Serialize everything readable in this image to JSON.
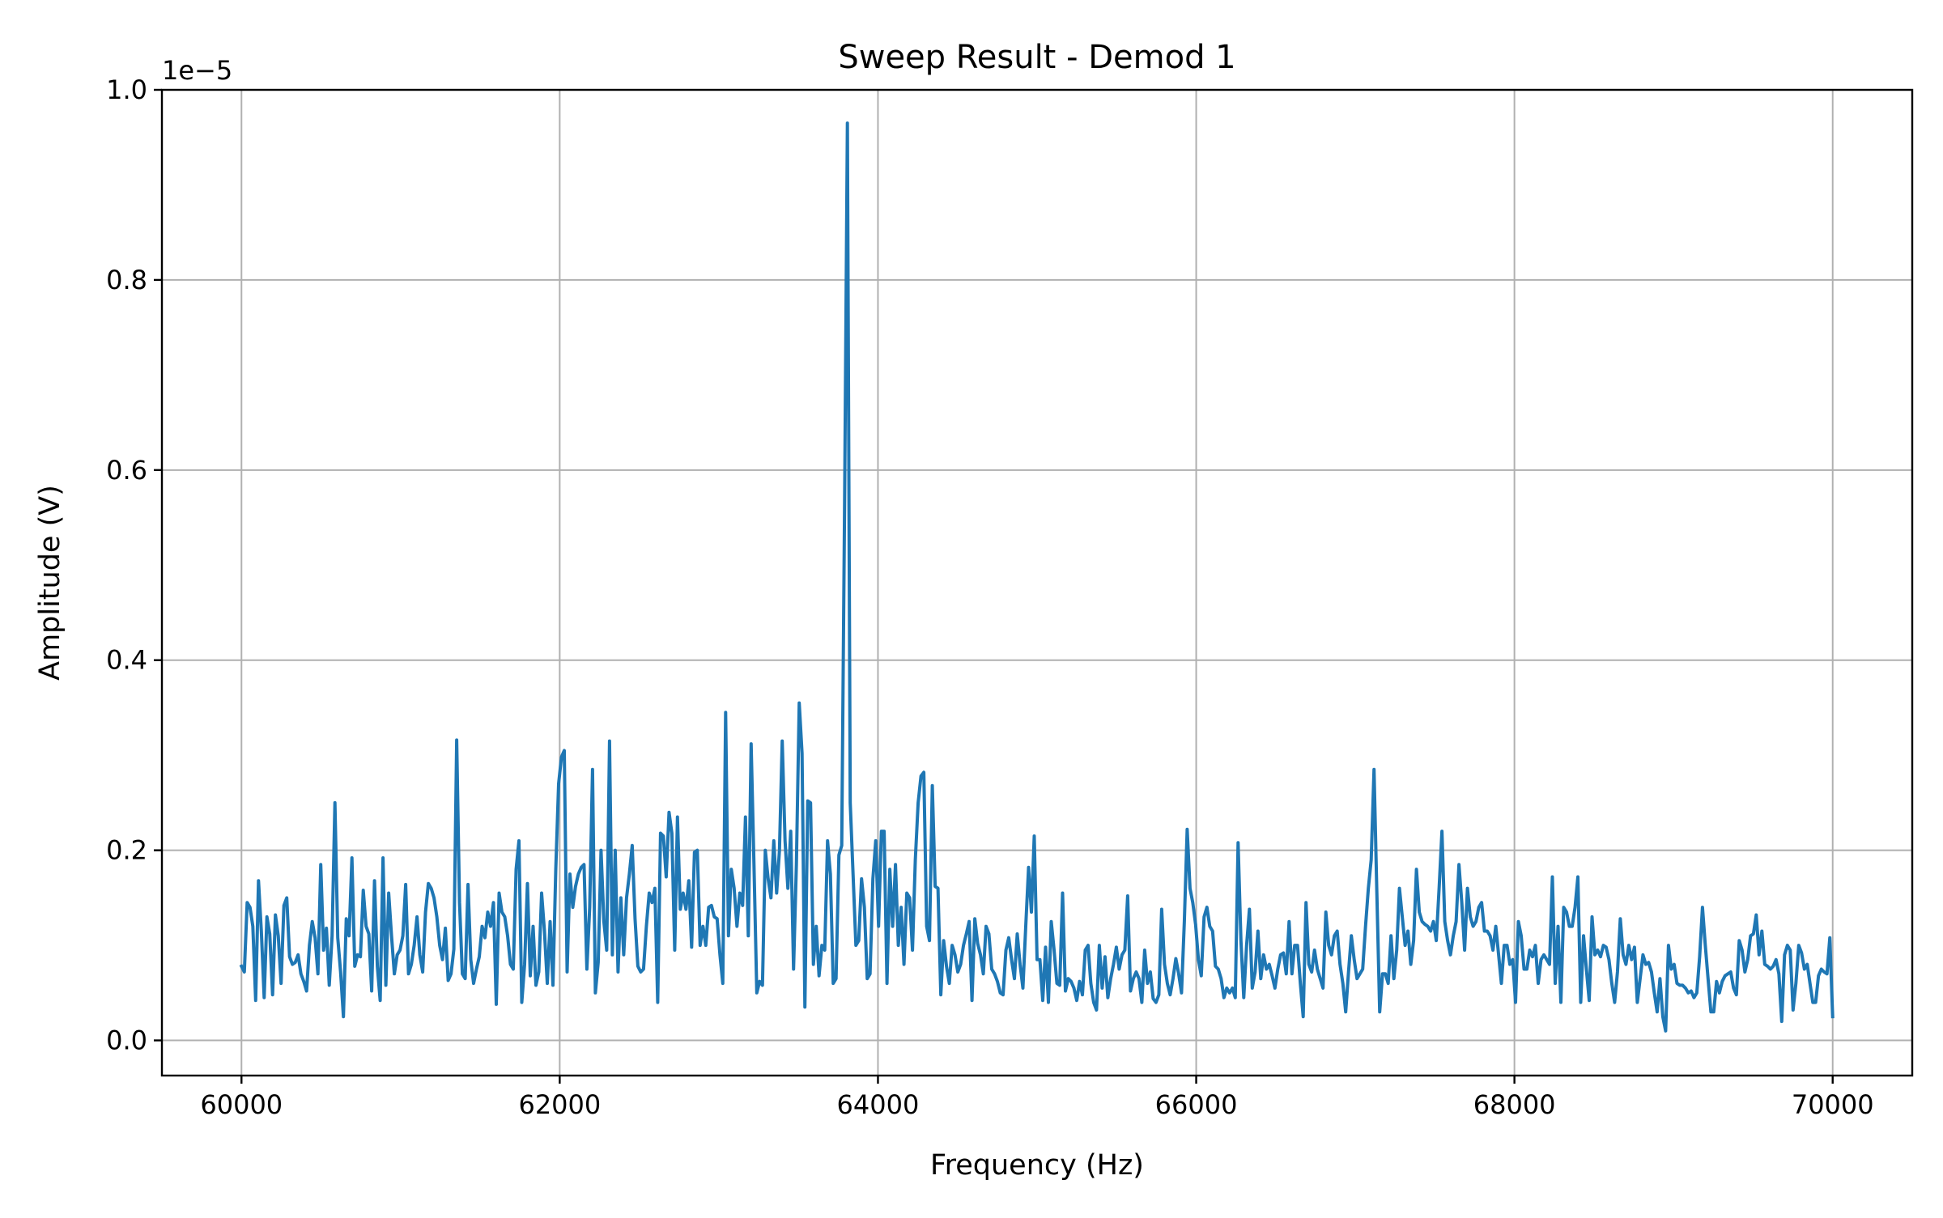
{
  "chart_data": {
    "type": "line",
    "title": "Sweep Result - Demod 1",
    "xlabel": "Frequency (Hz)",
    "ylabel": "Amplitude (V)",
    "y_scale_label": "1e−5",
    "xlim": [
      59500,
      70500
    ],
    "ylim": [
      -0.037,
      1.0
    ],
    "x_ticks": [
      60000,
      62000,
      64000,
      66000,
      68000,
      70000
    ],
    "x_tick_labels": [
      "60000",
      "62000",
      "64000",
      "66000",
      "68000",
      "70000"
    ],
    "y_ticks": [
      0.0,
      0.2,
      0.4,
      0.6,
      0.8,
      1.0
    ],
    "y_tick_labels": [
      "0.0",
      "0.2",
      "0.4",
      "0.6",
      "0.8",
      "1.0"
    ],
    "grid": true,
    "series": [
      {
        "color": "#1f77b4",
        "x_start": 60000,
        "x_end": 70000,
        "values": [
          0.078,
          0.072,
          0.145,
          0.14,
          0.12,
          0.042,
          0.168,
          0.115,
          0.045,
          0.13,
          0.112,
          0.048,
          0.132,
          0.11,
          0.06,
          0.142,
          0.15,
          0.088,
          0.08,
          0.082,
          0.09,
          0.07,
          0.062,
          0.052,
          0.1,
          0.125,
          0.108,
          0.07,
          0.185,
          0.095,
          0.118,
          0.058,
          0.11,
          0.25,
          0.108,
          0.072,
          0.025,
          0.128,
          0.11,
          0.192,
          0.078,
          0.09,
          0.088,
          0.158,
          0.12,
          0.112,
          0.052,
          0.168,
          0.078,
          0.042,
          0.192,
          0.058,
          0.155,
          0.11,
          0.07,
          0.09,
          0.095,
          0.11,
          0.164,
          0.07,
          0.08,
          0.1,
          0.13,
          0.09,
          0.072,
          0.135,
          0.165,
          0.16,
          0.15,
          0.13,
          0.1,
          0.085,
          0.118,
          0.063,
          0.07,
          0.096,
          0.316,
          0.145,
          0.07,
          0.065,
          0.164,
          0.085,
          0.06,
          0.075,
          0.088,
          0.12,
          0.108,
          0.135,
          0.12,
          0.145,
          0.038,
          0.155,
          0.135,
          0.13,
          0.11,
          0.08,
          0.075,
          0.18,
          0.21,
          0.04,
          0.08,
          0.165,
          0.068,
          0.12,
          0.058,
          0.072,
          0.155,
          0.115,
          0.06,
          0.125,
          0.058,
          0.18,
          0.27,
          0.298,
          0.305,
          0.072,
          0.175,
          0.14,
          0.162,
          0.175,
          0.182,
          0.185,
          0.075,
          0.14,
          0.285,
          0.05,
          0.082,
          0.2,
          0.125,
          0.095,
          0.315,
          0.09,
          0.2,
          0.072,
          0.15,
          0.09,
          0.15,
          0.175,
          0.205,
          0.128,
          0.078,
          0.072,
          0.075,
          0.12,
          0.155,
          0.145,
          0.16,
          0.04,
          0.218,
          0.215,
          0.172,
          0.24,
          0.218,
          0.095,
          0.235,
          0.138,
          0.155,
          0.138,
          0.168,
          0.098,
          0.198,
          0.2,
          0.1,
          0.12,
          0.1,
          0.14,
          0.142,
          0.13,
          0.128,
          0.09,
          0.06,
          0.345,
          0.11,
          0.18,
          0.16,
          0.12,
          0.155,
          0.142,
          0.235,
          0.11,
          0.312,
          0.185,
          0.05,
          0.062,
          0.058,
          0.2,
          0.17,
          0.15,
          0.21,
          0.155,
          0.2,
          0.315,
          0.21,
          0.16,
          0.22,
          0.075,
          0.185,
          0.355,
          0.302,
          0.035,
          0.252,
          0.25,
          0.08,
          0.12,
          0.068,
          0.1,
          0.095,
          0.21,
          0.175,
          0.06,
          0.065,
          0.195,
          0.205,
          0.56,
          0.965,
          0.25,
          0.175,
          0.1,
          0.105,
          0.17,
          0.14,
          0.065,
          0.07,
          0.17,
          0.21,
          0.12,
          0.22,
          0.22,
          0.06,
          0.18,
          0.12,
          0.185,
          0.1,
          0.14,
          0.08,
          0.155,
          0.15,
          0.095,
          0.19,
          0.25,
          0.278,
          0.282,
          0.12,
          0.105,
          0.268,
          0.162,
          0.16,
          0.048,
          0.105,
          0.078,
          0.06,
          0.1,
          0.09,
          0.072,
          0.08,
          0.1,
          0.112,
          0.125,
          0.042,
          0.128,
          0.102,
          0.09,
          0.07,
          0.12,
          0.112,
          0.075,
          0.07,
          0.062,
          0.05,
          0.048,
          0.095,
          0.108,
          0.085,
          0.065,
          0.112,
          0.08,
          0.055,
          0.12,
          0.182,
          0.135,
          0.215,
          0.085,
          0.085,
          0.042,
          0.098,
          0.04,
          0.125,
          0.095,
          0.06,
          0.058,
          0.155,
          0.052,
          0.065,
          0.062,
          0.055,
          0.042,
          0.062,
          0.048,
          0.095,
          0.1,
          0.06,
          0.04,
          0.032,
          0.1,
          0.055,
          0.088,
          0.045,
          0.065,
          0.08,
          0.098,
          0.075,
          0.09,
          0.095,
          0.152,
          0.052,
          0.065,
          0.072,
          0.065,
          0.04,
          0.095,
          0.06,
          0.072,
          0.044,
          0.04,
          0.048,
          0.138,
          0.08,
          0.06,
          0.048,
          0.065,
          0.086,
          0.07,
          0.05,
          0.125,
          0.222,
          0.16,
          0.145,
          0.122,
          0.085,
          0.068,
          0.13,
          0.14,
          0.12,
          0.115,
          0.078,
          0.075,
          0.065,
          0.045,
          0.055,
          0.05,
          0.055,
          0.045,
          0.208,
          0.105,
          0.045,
          0.1,
          0.138,
          0.055,
          0.072,
          0.115,
          0.065,
          0.09,
          0.075,
          0.08,
          0.068,
          0.055,
          0.075,
          0.09,
          0.092,
          0.07,
          0.125,
          0.07,
          0.1,
          0.1,
          0.06,
          0.025,
          0.145,
          0.08,
          0.072,
          0.095,
          0.075,
          0.065,
          0.055,
          0.135,
          0.1,
          0.09,
          0.11,
          0.115,
          0.08,
          0.06,
          0.03,
          0.072,
          0.11,
          0.085,
          0.065,
          0.07,
          0.075,
          0.12,
          0.16,
          0.19,
          0.285,
          0.155,
          0.03,
          0.07,
          0.07,
          0.06,
          0.11,
          0.065,
          0.095,
          0.16,
          0.13,
          0.1,
          0.115,
          0.08,
          0.105,
          0.18,
          0.135,
          0.125,
          0.122,
          0.12,
          0.115,
          0.125,
          0.105,
          0.16,
          0.22,
          0.125,
          0.105,
          0.09,
          0.11,
          0.125,
          0.185,
          0.145,
          0.095,
          0.16,
          0.13,
          0.12,
          0.125,
          0.14,
          0.145,
          0.115,
          0.115,
          0.11,
          0.095,
          0.12,
          0.09,
          0.06,
          0.1,
          0.1,
          0.08,
          0.085,
          0.04,
          0.125,
          0.11,
          0.075,
          0.075,
          0.095,
          0.088,
          0.1,
          0.06,
          0.085,
          0.09,
          0.085,
          0.08,
          0.172,
          0.06,
          0.12,
          0.04,
          0.14,
          0.135,
          0.12,
          0.12,
          0.14,
          0.172,
          0.04,
          0.11,
          0.075,
          0.042,
          0.13,
          0.09,
          0.095,
          0.088,
          0.1,
          0.098,
          0.085,
          0.06,
          0.04,
          0.072,
          0.128,
          0.09,
          0.08,
          0.1,
          0.085,
          0.098,
          0.04,
          0.065,
          0.09,
          0.08,
          0.082,
          0.072,
          0.05,
          0.03,
          0.065,
          0.025,
          0.01,
          0.1,
          0.075,
          0.08,
          0.06,
          0.058,
          0.058,
          0.055,
          0.05,
          0.052,
          0.045,
          0.05,
          0.088,
          0.14,
          0.1,
          0.065,
          0.03,
          0.03,
          0.062,
          0.05,
          0.062,
          0.068,
          0.07,
          0.072,
          0.055,
          0.048,
          0.105,
          0.095,
          0.072,
          0.085,
          0.11,
          0.112,
          0.132,
          0.09,
          0.115,
          0.08,
          0.078,
          0.075,
          0.078,
          0.085,
          0.07,
          0.02,
          0.09,
          0.1,
          0.095,
          0.032,
          0.06,
          0.1,
          0.092,
          0.075,
          0.08,
          0.06,
          0.04,
          0.04,
          0.068,
          0.075,
          0.072,
          0.07,
          0.108,
          0.025
        ]
      }
    ]
  }
}
